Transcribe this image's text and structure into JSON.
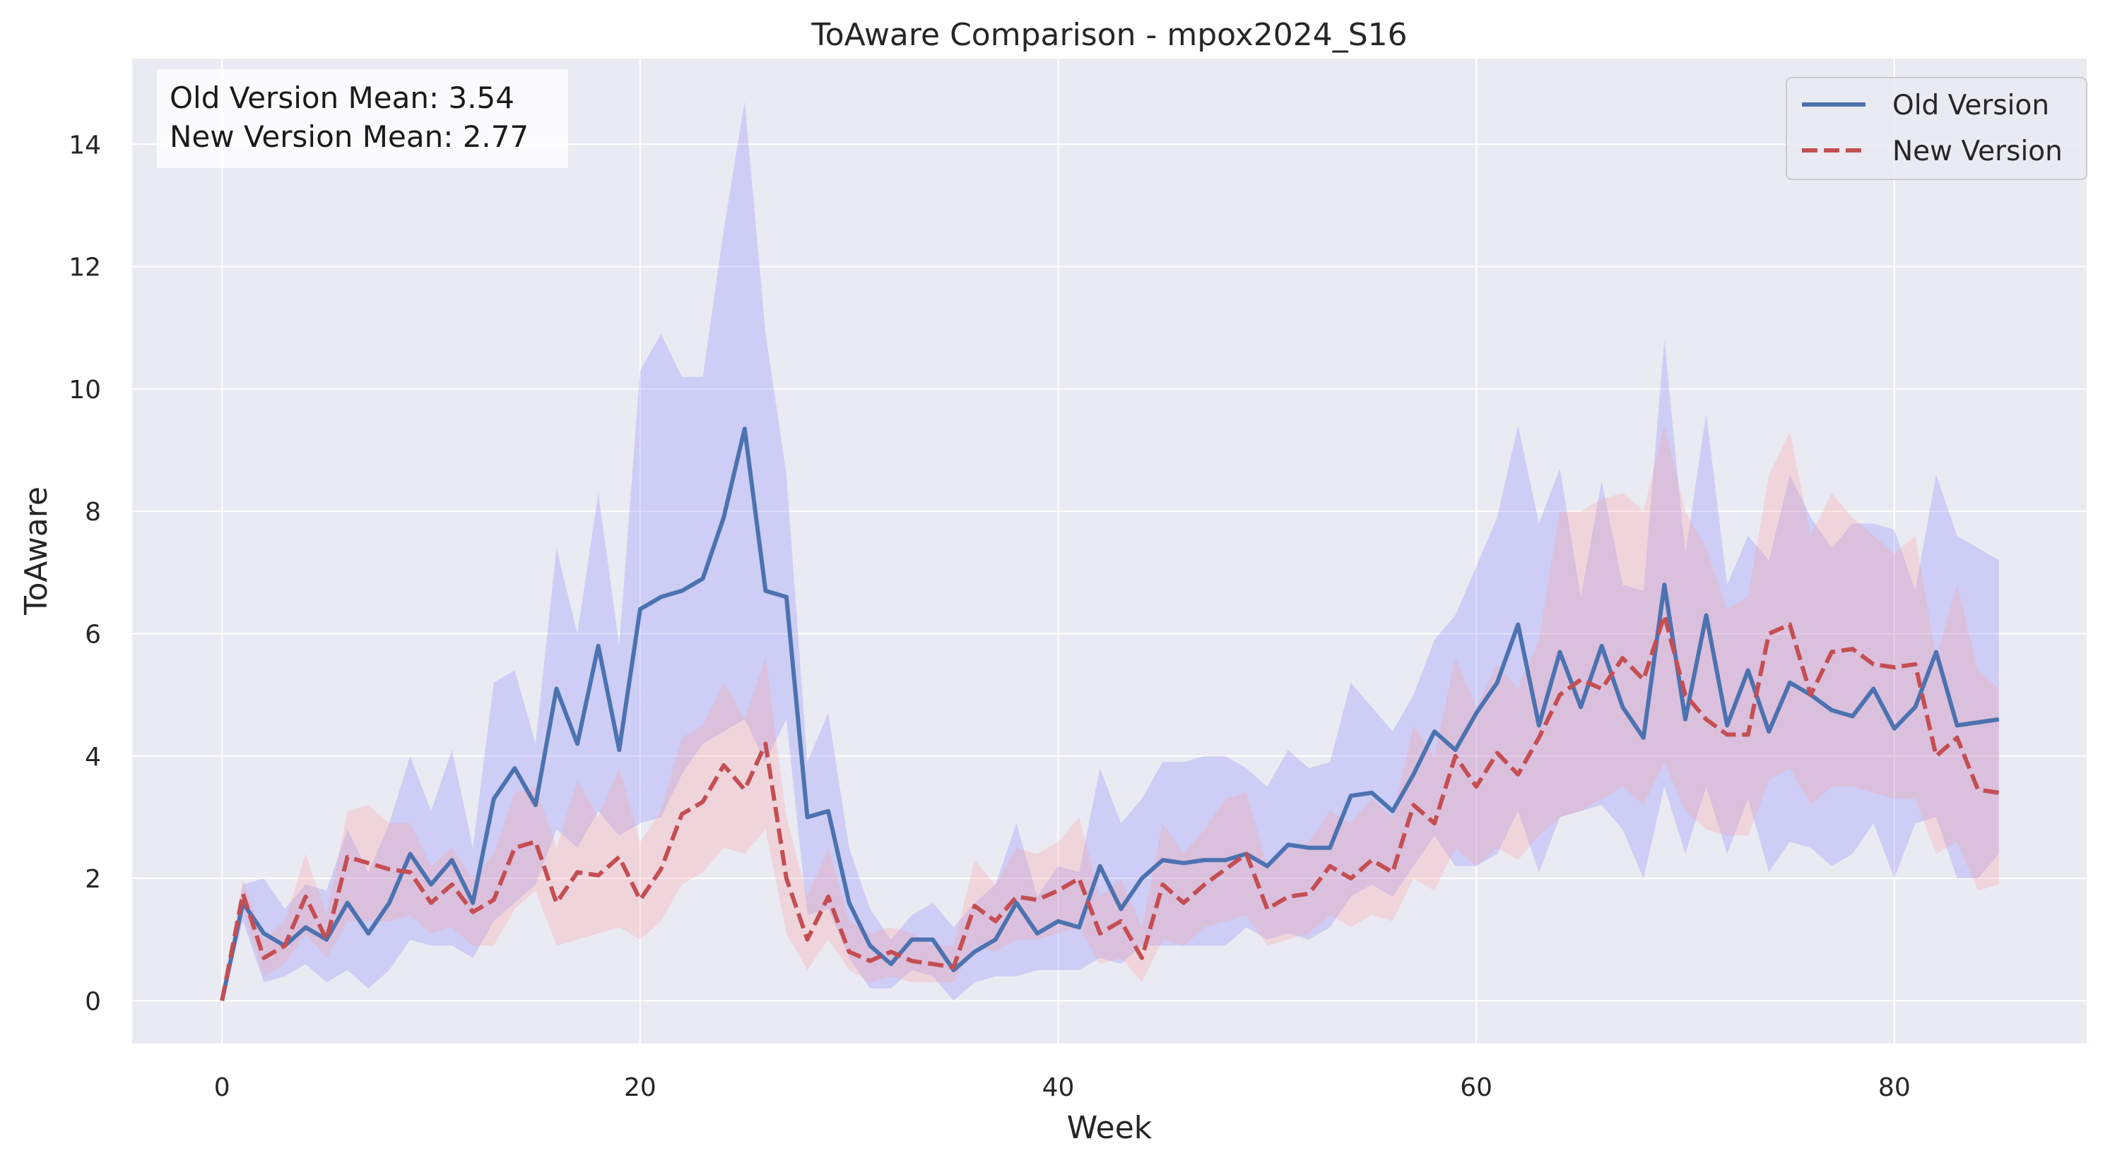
{
  "chart_data": {
    "type": "line",
    "title": "ToAware Comparison - mpox2024_S16",
    "xlabel": "Week",
    "ylabel": "ToAware",
    "xlim": [
      -4.3,
      89.2
    ],
    "ylim": [
      -0.7,
      15.4
    ],
    "xticks": [
      0,
      20,
      40,
      60,
      80
    ],
    "yticks": [
      0,
      2,
      4,
      6,
      8,
      10,
      12,
      14
    ],
    "grid": true,
    "legend_position": "top-right",
    "stats_box": {
      "old_mean": "Old Version Mean: 3.54",
      "new_mean": "New Version Mean: 2.77"
    },
    "series": [
      {
        "name": "Old Version",
        "color": "#4c72b0",
        "style": "solid",
        "band_color": "#7d7dff",
        "x": [
          0,
          1,
          2,
          3,
          4,
          5,
          6,
          7,
          8,
          9,
          10,
          11,
          12,
          13,
          14,
          15,
          16,
          17,
          18,
          19,
          20,
          21,
          22,
          23,
          24,
          25,
          26,
          27,
          28,
          29,
          30,
          31,
          32,
          33,
          34,
          35,
          36,
          37,
          38,
          39,
          40,
          41,
          42,
          43,
          44,
          45,
          46,
          47,
          48,
          49,
          50,
          51,
          52,
          53,
          54,
          55,
          56,
          57,
          58,
          59,
          60,
          61,
          62,
          63,
          64,
          65,
          66,
          67,
          68,
          69,
          70,
          71,
          72,
          73,
          74,
          75,
          76,
          77,
          78,
          79,
          80,
          81,
          82,
          83,
          84,
          85
        ],
        "values": [
          0,
          1.6,
          1.1,
          0.9,
          1.2,
          1.0,
          1.6,
          1.1,
          1.6,
          2.4,
          1.9,
          2.3,
          1.6,
          3.3,
          3.8,
          3.2,
          5.1,
          4.2,
          5.8,
          4.1,
          6.4,
          6.6,
          6.7,
          6.9,
          7.9,
          9.35,
          6.7,
          6.6,
          3.0,
          3.1,
          1.6,
          0.9,
          0.6,
          1.0,
          1.0,
          0.5,
          0.8,
          1.0,
          1.6,
          1.1,
          1.3,
          1.2,
          2.2,
          1.5,
          2.0,
          2.3,
          2.25,
          2.3,
          2.3,
          2.4,
          2.2,
          2.55,
          2.5,
          2.5,
          3.35,
          3.4,
          3.1,
          3.7,
          4.4,
          4.1,
          4.7,
          5.2,
          6.15,
          4.5,
          5.7,
          4.8,
          5.8,
          4.8,
          4.3,
          6.8,
          4.6,
          6.3,
          4.5,
          5.4,
          4.4,
          5.2,
          5.0,
          4.75,
          4.65,
          5.1,
          4.45,
          4.8,
          5.7,
          4.5,
          4.55,
          4.6
        ],
        "lower": [
          0,
          1.3,
          0.3,
          0.4,
          0.6,
          0.3,
          0.5,
          0.2,
          0.5,
          1.0,
          0.9,
          0.9,
          0.7,
          1.3,
          1.6,
          1.9,
          2.8,
          2.5,
          3.1,
          2.7,
          2.9,
          3.0,
          3.7,
          4.2,
          4.4,
          4.6,
          3.9,
          4.6,
          1.4,
          1.5,
          0.7,
          0.2,
          0.2,
          0.5,
          0.4,
          0.0,
          0.3,
          0.4,
          0.4,
          0.5,
          0.5,
          0.5,
          0.7,
          0.6,
          0.9,
          0.9,
          0.9,
          0.9,
          0.9,
          1.2,
          1.0,
          1.1,
          1.0,
          1.2,
          1.7,
          1.9,
          1.7,
          2.2,
          2.7,
          2.2,
          2.2,
          2.4,
          3.1,
          2.1,
          3.0,
          3.1,
          3.2,
          2.8,
          2.0,
          3.5,
          2.4,
          3.5,
          2.4,
          3.3,
          2.1,
          2.6,
          2.5,
          2.2,
          2.4,
          2.9,
          2.0,
          2.9,
          3.0,
          2.0,
          2.0,
          2.4
        ],
        "upper": [
          0,
          1.9,
          2.0,
          1.5,
          1.9,
          1.8,
          2.8,
          2.1,
          2.9,
          4.0,
          3.1,
          4.1,
          2.5,
          5.2,
          5.4,
          4.2,
          7.4,
          6.0,
          8.3,
          5.8,
          10.3,
          10.9,
          10.2,
          10.2,
          12.6,
          14.7,
          10.9,
          8.6,
          3.9,
          4.7,
          2.5,
          1.5,
          1.0,
          1.4,
          1.6,
          1.2,
          1.6,
          1.9,
          2.9,
          1.7,
          2.2,
          2.1,
          3.8,
          2.9,
          3.3,
          3.9,
          3.9,
          4.0,
          4.0,
          3.8,
          3.5,
          4.1,
          3.8,
          3.9,
          5.2,
          4.8,
          4.4,
          5.0,
          5.9,
          6.3,
          7.1,
          7.9,
          9.4,
          7.8,
          8.7,
          6.6,
          8.5,
          6.8,
          6.7,
          10.8,
          7.3,
          9.6,
          6.8,
          7.6,
          7.2,
          8.6,
          7.9,
          7.4,
          7.8,
          7.8,
          7.7,
          6.7,
          8.6,
          7.6,
          7.4,
          7.2
        ]
      },
      {
        "name": "New Version",
        "color": "#c44e52",
        "style": "dashed",
        "band_color": "#ff9a9a",
        "x": [
          0,
          1,
          2,
          3,
          4,
          5,
          6,
          7,
          8,
          9,
          10,
          11,
          12,
          13,
          14,
          15,
          16,
          17,
          18,
          19,
          20,
          21,
          22,
          23,
          24,
          25,
          26,
          27,
          28,
          29,
          30,
          31,
          32,
          33,
          34,
          35,
          36,
          37,
          38,
          39,
          40,
          41,
          42,
          43,
          44,
          45,
          46,
          47,
          48,
          49,
          50,
          51,
          52,
          53,
          54,
          55,
          56,
          57,
          58,
          59,
          60,
          61,
          62,
          63,
          64,
          65,
          66,
          67,
          68,
          69,
          70,
          71,
          72,
          73,
          74,
          75,
          76,
          77,
          78,
          79,
          80,
          81,
          82,
          83,
          84,
          85
        ],
        "values": [
          0,
          1.75,
          0.7,
          0.9,
          1.7,
          1.0,
          2.35,
          2.25,
          2.15,
          2.1,
          1.6,
          1.9,
          1.45,
          1.65,
          2.5,
          2.6,
          1.6,
          2.1,
          2.05,
          2.35,
          1.65,
          2.15,
          3.05,
          3.25,
          3.85,
          3.45,
          4.2,
          2.0,
          1.0,
          1.7,
          0.8,
          0.65,
          0.8,
          0.65,
          0.6,
          0.55,
          1.55,
          1.3,
          1.7,
          1.65,
          1.8,
          2.0,
          1.1,
          1.3,
          0.7,
          1.9,
          1.6,
          1.9,
          2.15,
          2.4,
          1.5,
          1.7,
          1.75,
          2.2,
          2.0,
          2.3,
          2.1,
          3.2,
          2.9,
          4.0,
          3.5,
          4.05,
          3.7,
          4.3,
          5.0,
          5.25,
          5.1,
          5.6,
          5.25,
          6.3,
          5.0,
          4.6,
          4.35,
          4.35,
          6.0,
          6.15,
          5.0,
          5.7,
          5.75,
          5.5,
          5.45,
          5.5,
          4.0,
          4.3,
          3.45,
          3.4
        ],
        "lower": [
          0,
          1.5,
          0.4,
          0.6,
          1.1,
          0.7,
          1.3,
          1.3,
          1.3,
          1.4,
          1.1,
          1.2,
          0.9,
          0.9,
          1.5,
          1.8,
          0.9,
          1.0,
          1.1,
          1.2,
          1.0,
          1.3,
          1.9,
          2.1,
          2.5,
          2.4,
          2.8,
          1.1,
          0.5,
          1.0,
          0.5,
          0.3,
          0.4,
          0.3,
          0.3,
          0.3,
          0.9,
          0.8,
          1.0,
          1.0,
          1.1,
          1.2,
          0.6,
          0.7,
          0.3,
          1.0,
          0.9,
          1.2,
          1.3,
          1.4,
          0.9,
          1.0,
          1.1,
          1.4,
          1.2,
          1.4,
          1.3,
          2.0,
          1.8,
          2.5,
          2.2,
          2.5,
          2.3,
          2.7,
          3.0,
          3.1,
          3.3,
          3.5,
          3.2,
          3.9,
          3.1,
          2.8,
          2.7,
          2.7,
          3.6,
          3.8,
          3.2,
          3.5,
          3.5,
          3.4,
          3.3,
          3.3,
          2.4,
          2.6,
          1.8,
          1.9
        ],
        "upper": [
          0,
          2.0,
          1.0,
          1.3,
          2.4,
          1.4,
          3.1,
          3.2,
          2.9,
          2.9,
          2.2,
          2.5,
          2.0,
          2.4,
          3.4,
          3.5,
          2.5,
          3.6,
          3.0,
          3.8,
          2.6,
          3.1,
          4.3,
          4.5,
          5.2,
          4.6,
          5.6,
          3.0,
          1.7,
          2.5,
          1.3,
          1.1,
          1.2,
          1.1,
          0.9,
          0.9,
          2.3,
          1.9,
          2.5,
          2.4,
          2.6,
          3.0,
          1.7,
          2.0,
          1.2,
          2.9,
          2.4,
          2.8,
          3.3,
          3.4,
          2.2,
          2.5,
          2.6,
          3.1,
          2.9,
          3.3,
          3.0,
          4.5,
          4.0,
          5.6,
          4.8,
          5.5,
          5.1,
          5.9,
          8.0,
          8.0,
          8.2,
          8.3,
          8.0,
          9.4,
          8.0,
          7.4,
          6.4,
          6.6,
          8.6,
          9.3,
          7.6,
          8.3,
          7.9,
          7.6,
          7.3,
          7.6,
          5.6,
          6.8,
          5.4,
          5.1
        ]
      }
    ]
  }
}
